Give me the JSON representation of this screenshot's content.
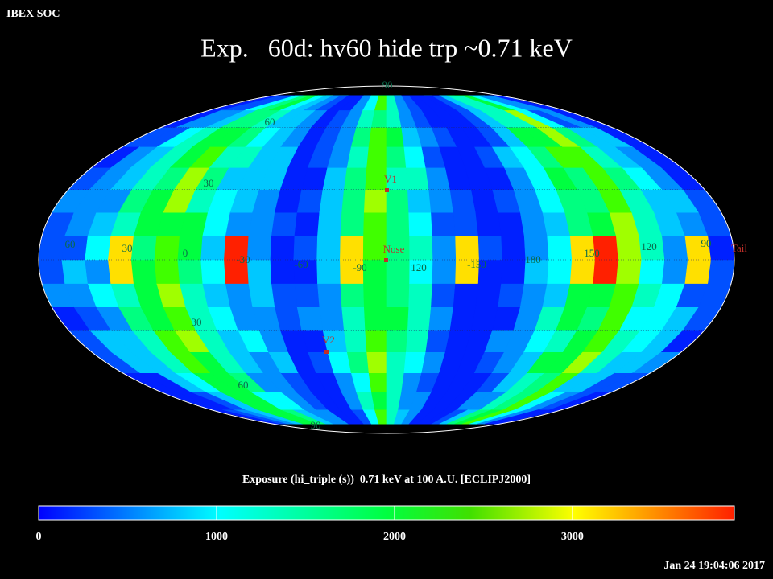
{
  "header": {
    "label": "IBEX SOC",
    "title": "Exp.   60d: hv60 hide trp ~0.71 keV"
  },
  "map": {
    "lon_labels": [
      "60",
      "30",
      "0",
      "-30",
      "-60",
      "-90",
      "120",
      "-150",
      "180",
      "150",
      "120",
      "90"
    ],
    "lat_labels": [
      "90",
      "60",
      "30",
      "30",
      "60",
      "90"
    ],
    "markers": [
      "V1",
      "Nose",
      "V2",
      "Tail"
    ]
  },
  "colorbar": {
    "label": "Exposure (hi_triple (s))  0.71 keV at 100 A.U. [ECLIPJ2000]",
    "lim": [
      0,
      3910
    ],
    "ticks": [
      0,
      1000,
      2000,
      3000
    ]
  },
  "footer": {
    "timestamp": "Jan 24 19:04:06 2017"
  }
}
